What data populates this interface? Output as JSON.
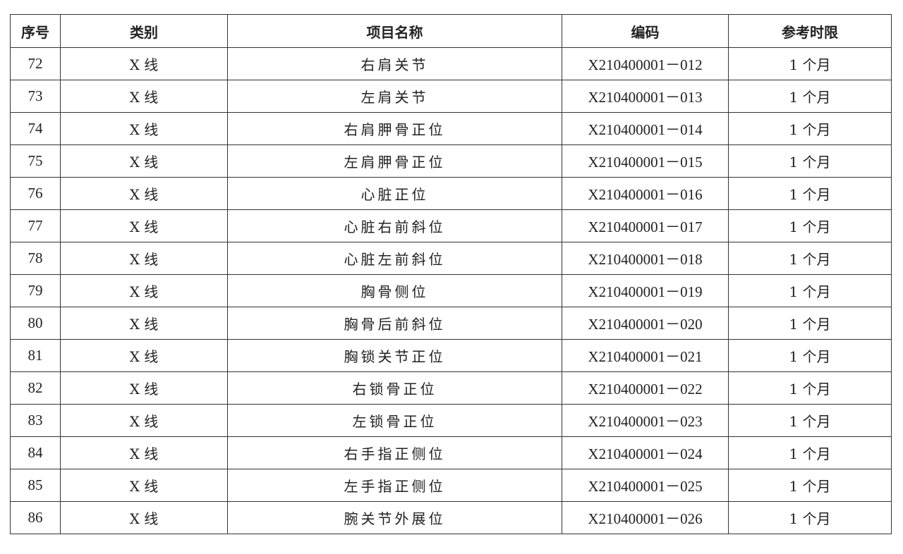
{
  "headers": [
    "序号",
    "类别",
    "项目名称",
    "编码",
    "参考时限"
  ],
  "rows": [
    {
      "no": "72",
      "category": "X 线",
      "name": "右肩关节",
      "code": "X210400001－012",
      "period": "1 个月"
    },
    {
      "no": "73",
      "category": "X 线",
      "name": "左肩关节",
      "code": "X210400001－013",
      "period": "1 个月"
    },
    {
      "no": "74",
      "category": "X 线",
      "name": "右肩胛骨正位",
      "code": "X210400001－014",
      "period": "1 个月"
    },
    {
      "no": "75",
      "category": "X 线",
      "name": "左肩胛骨正位",
      "code": "X210400001－015",
      "period": "1 个月"
    },
    {
      "no": "76",
      "category": "X 线",
      "name": "心脏正位",
      "code": "X210400001－016",
      "period": "1 个月"
    },
    {
      "no": "77",
      "category": "X 线",
      "name": "心脏右前斜位",
      "code": "X210400001－017",
      "period": "1 个月"
    },
    {
      "no": "78",
      "category": "X 线",
      "name": "心脏左前斜位",
      "code": "X210400001－018",
      "period": "1 个月"
    },
    {
      "no": "79",
      "category": "X 线",
      "name": "胸骨侧位",
      "code": "X210400001－019",
      "period": "1 个月"
    },
    {
      "no": "80",
      "category": "X 线",
      "name": "胸骨后前斜位",
      "code": "X210400001－020",
      "period": "1 个月"
    },
    {
      "no": "81",
      "category": "X 线",
      "name": "胸锁关节正位",
      "code": "X210400001－021",
      "period": "1 个月"
    },
    {
      "no": "82",
      "category": "X 线",
      "name": "右锁骨正位",
      "code": "X210400001－022",
      "period": "1 个月"
    },
    {
      "no": "83",
      "category": "X 线",
      "name": "左锁骨正位",
      "code": "X210400001－023",
      "period": "1 个月"
    },
    {
      "no": "84",
      "category": "X 线",
      "name": "右手指正侧位",
      "code": "X210400001－024",
      "period": "1 个月"
    },
    {
      "no": "85",
      "category": "X 线",
      "name": "左手指正侧位",
      "code": "X210400001－025",
      "period": "1 个月"
    },
    {
      "no": "86",
      "category": "X 线",
      "name": "腕关节外展位",
      "code": "X210400001－026",
      "period": "1 个月"
    }
  ]
}
